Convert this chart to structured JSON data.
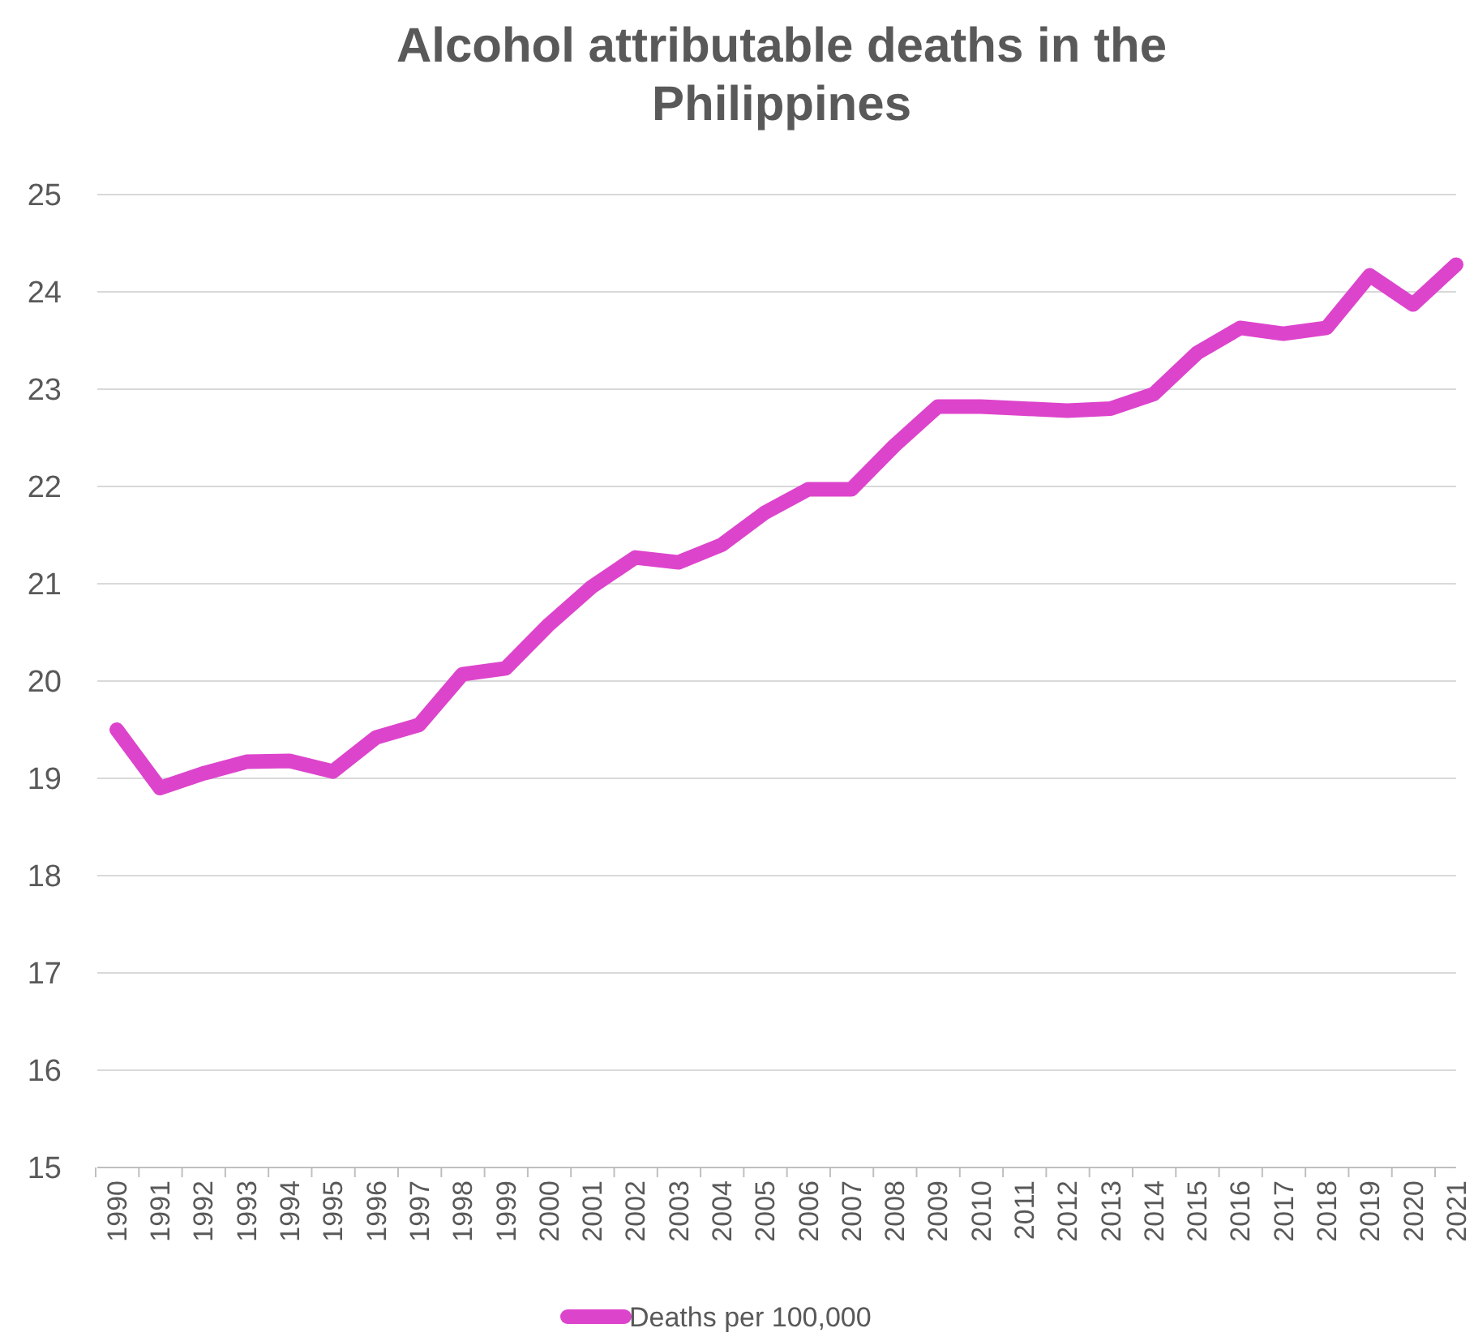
{
  "chart_data": {
    "type": "line",
    "title": "Alcohol attributable deaths in the Philippines",
    "categories": [
      "1990",
      "1991",
      "1992",
      "1993",
      "1994",
      "1995",
      "1996",
      "1997",
      "1998",
      "1999",
      "2000",
      "2001",
      "2002",
      "2003",
      "2004",
      "2005",
      "2006",
      "2007",
      "2008",
      "2009",
      "2010",
      "2011",
      "2012",
      "2013",
      "2014",
      "2015",
      "2016",
      "2017",
      "2018",
      "2019",
      "2020",
      "2021"
    ],
    "series": [
      {
        "name": "Deaths per 100,000",
        "color": "#dd44cc",
        "values": [
          19.5,
          18.9,
          19.05,
          19.17,
          19.18,
          19.07,
          19.42,
          19.55,
          20.07,
          20.13,
          20.58,
          20.97,
          21.27,
          21.22,
          21.4,
          21.73,
          21.97,
          21.97,
          22.42,
          22.82,
          22.82,
          22.8,
          22.78,
          22.8,
          22.95,
          23.37,
          23.63,
          23.57,
          23.63,
          24.17,
          23.87,
          24.28
        ]
      }
    ],
    "ylim": [
      15,
      25
    ],
    "yticks": [
      15,
      16,
      17,
      18,
      19,
      20,
      21,
      22,
      23,
      24,
      25
    ],
    "grid": "y",
    "legend": "bottom",
    "marker": "none",
    "line_style": "solid"
  }
}
